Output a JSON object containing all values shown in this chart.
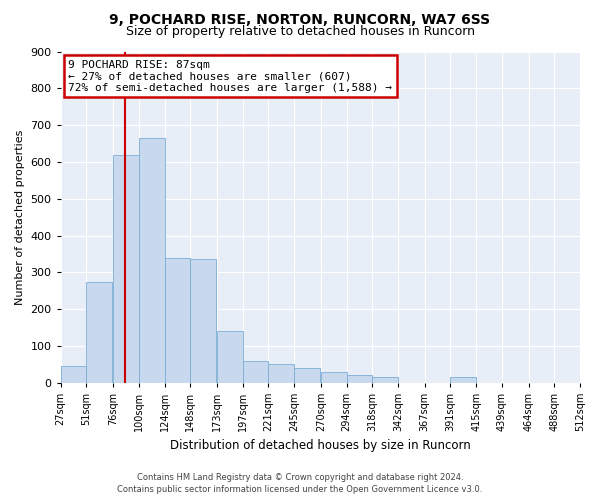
{
  "title": "9, POCHARD RISE, NORTON, RUNCORN, WA7 6SS",
  "subtitle": "Size of property relative to detached houses in Runcorn",
  "xlabel": "Distribution of detached houses by size in Runcorn",
  "ylabel": "Number of detached properties",
  "footer_line1": "Contains HM Land Registry data © Crown copyright and database right 2024.",
  "footer_line2": "Contains public sector information licensed under the Open Government Licence v3.0.",
  "property_size": 87,
  "property_label": "9 POCHARD RISE: 87sqm",
  "annotation_line1": "← 27% of detached houses are smaller (607)",
  "annotation_line2": "72% of semi-detached houses are larger (1,588) →",
  "bar_color": "#c9d9ed",
  "bar_edge_color": "#7aaed6",
  "vline_color": "#cc0000",
  "annotation_box_color": "#cc0000",
  "plot_bg_color": "#e8eef7",
  "bins_start": [
    27,
    51,
    76,
    100,
    124,
    148,
    173,
    197,
    221,
    245,
    270,
    294,
    318,
    342,
    367,
    391,
    415,
    439,
    464,
    488
  ],
  "bin_width": 24,
  "bar_heights": [
    45,
    275,
    620,
    665,
    340,
    335,
    140,
    60,
    50,
    40,
    30,
    20,
    15,
    0,
    0,
    15,
    0,
    0,
    0,
    0
  ],
  "ylim": [
    0,
    900
  ],
  "yticks": [
    0,
    100,
    200,
    300,
    400,
    500,
    600,
    700,
    800,
    900
  ],
  "tick_labels": [
    "27sqm",
    "51sqm",
    "76sqm",
    "100sqm",
    "124sqm",
    "148sqm",
    "173sqm",
    "197sqm",
    "221sqm",
    "245sqm",
    "270sqm",
    "294sqm",
    "318sqm",
    "342sqm",
    "367sqm",
    "391sqm",
    "415sqm",
    "439sqm",
    "464sqm",
    "488sqm",
    "512sqm"
  ],
  "title_fontsize": 10,
  "subtitle_fontsize": 9,
  "ylabel_fontsize": 8,
  "xlabel_fontsize": 8.5,
  "ytick_fontsize": 8,
  "xtick_fontsize": 7,
  "footer_fontsize": 6
}
